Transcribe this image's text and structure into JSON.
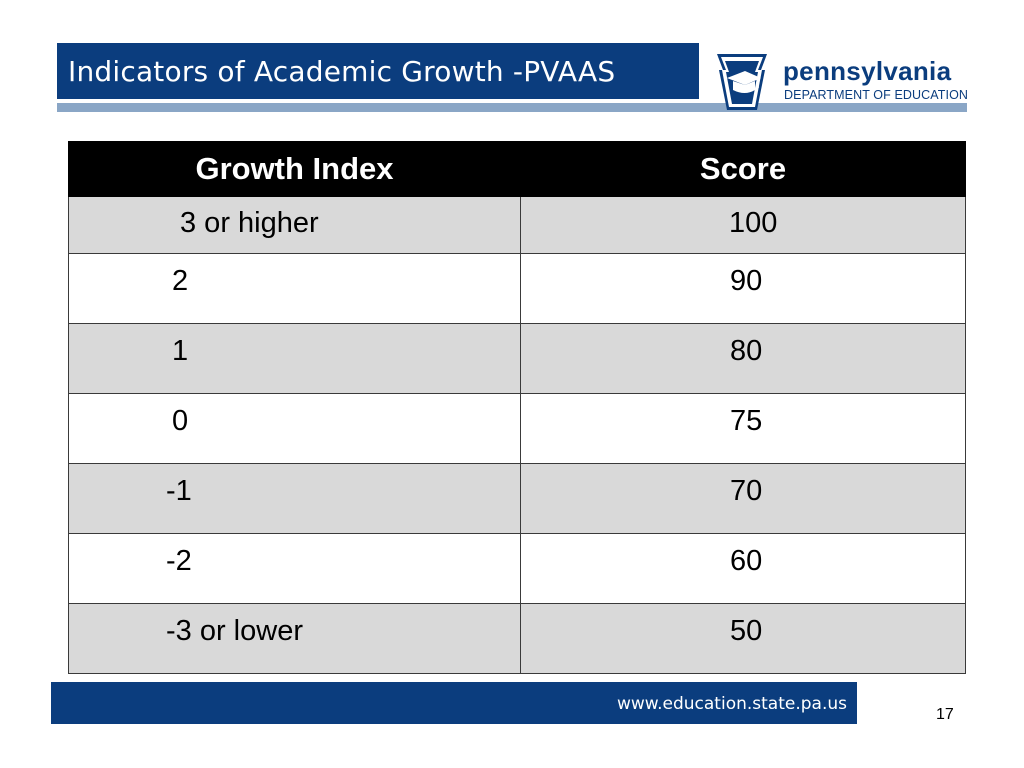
{
  "slide": {
    "title": "Indicators of Academic Growth -PVAAS",
    "logo": {
      "name": "pennsylvania",
      "subtitle": "DEPARTMENT OF EDUCATION"
    },
    "footer": {
      "url": "www.education.state.pa.us",
      "page_number": "17"
    }
  },
  "table": {
    "headers": [
      "Growth Index",
      "Score"
    ],
    "rows": [
      [
        "3 or higher",
        "100"
      ],
      [
        "2",
        "90"
      ],
      [
        "1",
        "80"
      ],
      [
        "0",
        "75"
      ],
      [
        "-1",
        "70"
      ],
      [
        "-2",
        "60"
      ],
      [
        "-3 or lower",
        "50"
      ]
    ]
  },
  "colors": {
    "brand_blue": "#0b3d7e",
    "underline_blue": "#8aa6c6",
    "header_black": "#000000",
    "row_shade": "#d9d9d9"
  }
}
